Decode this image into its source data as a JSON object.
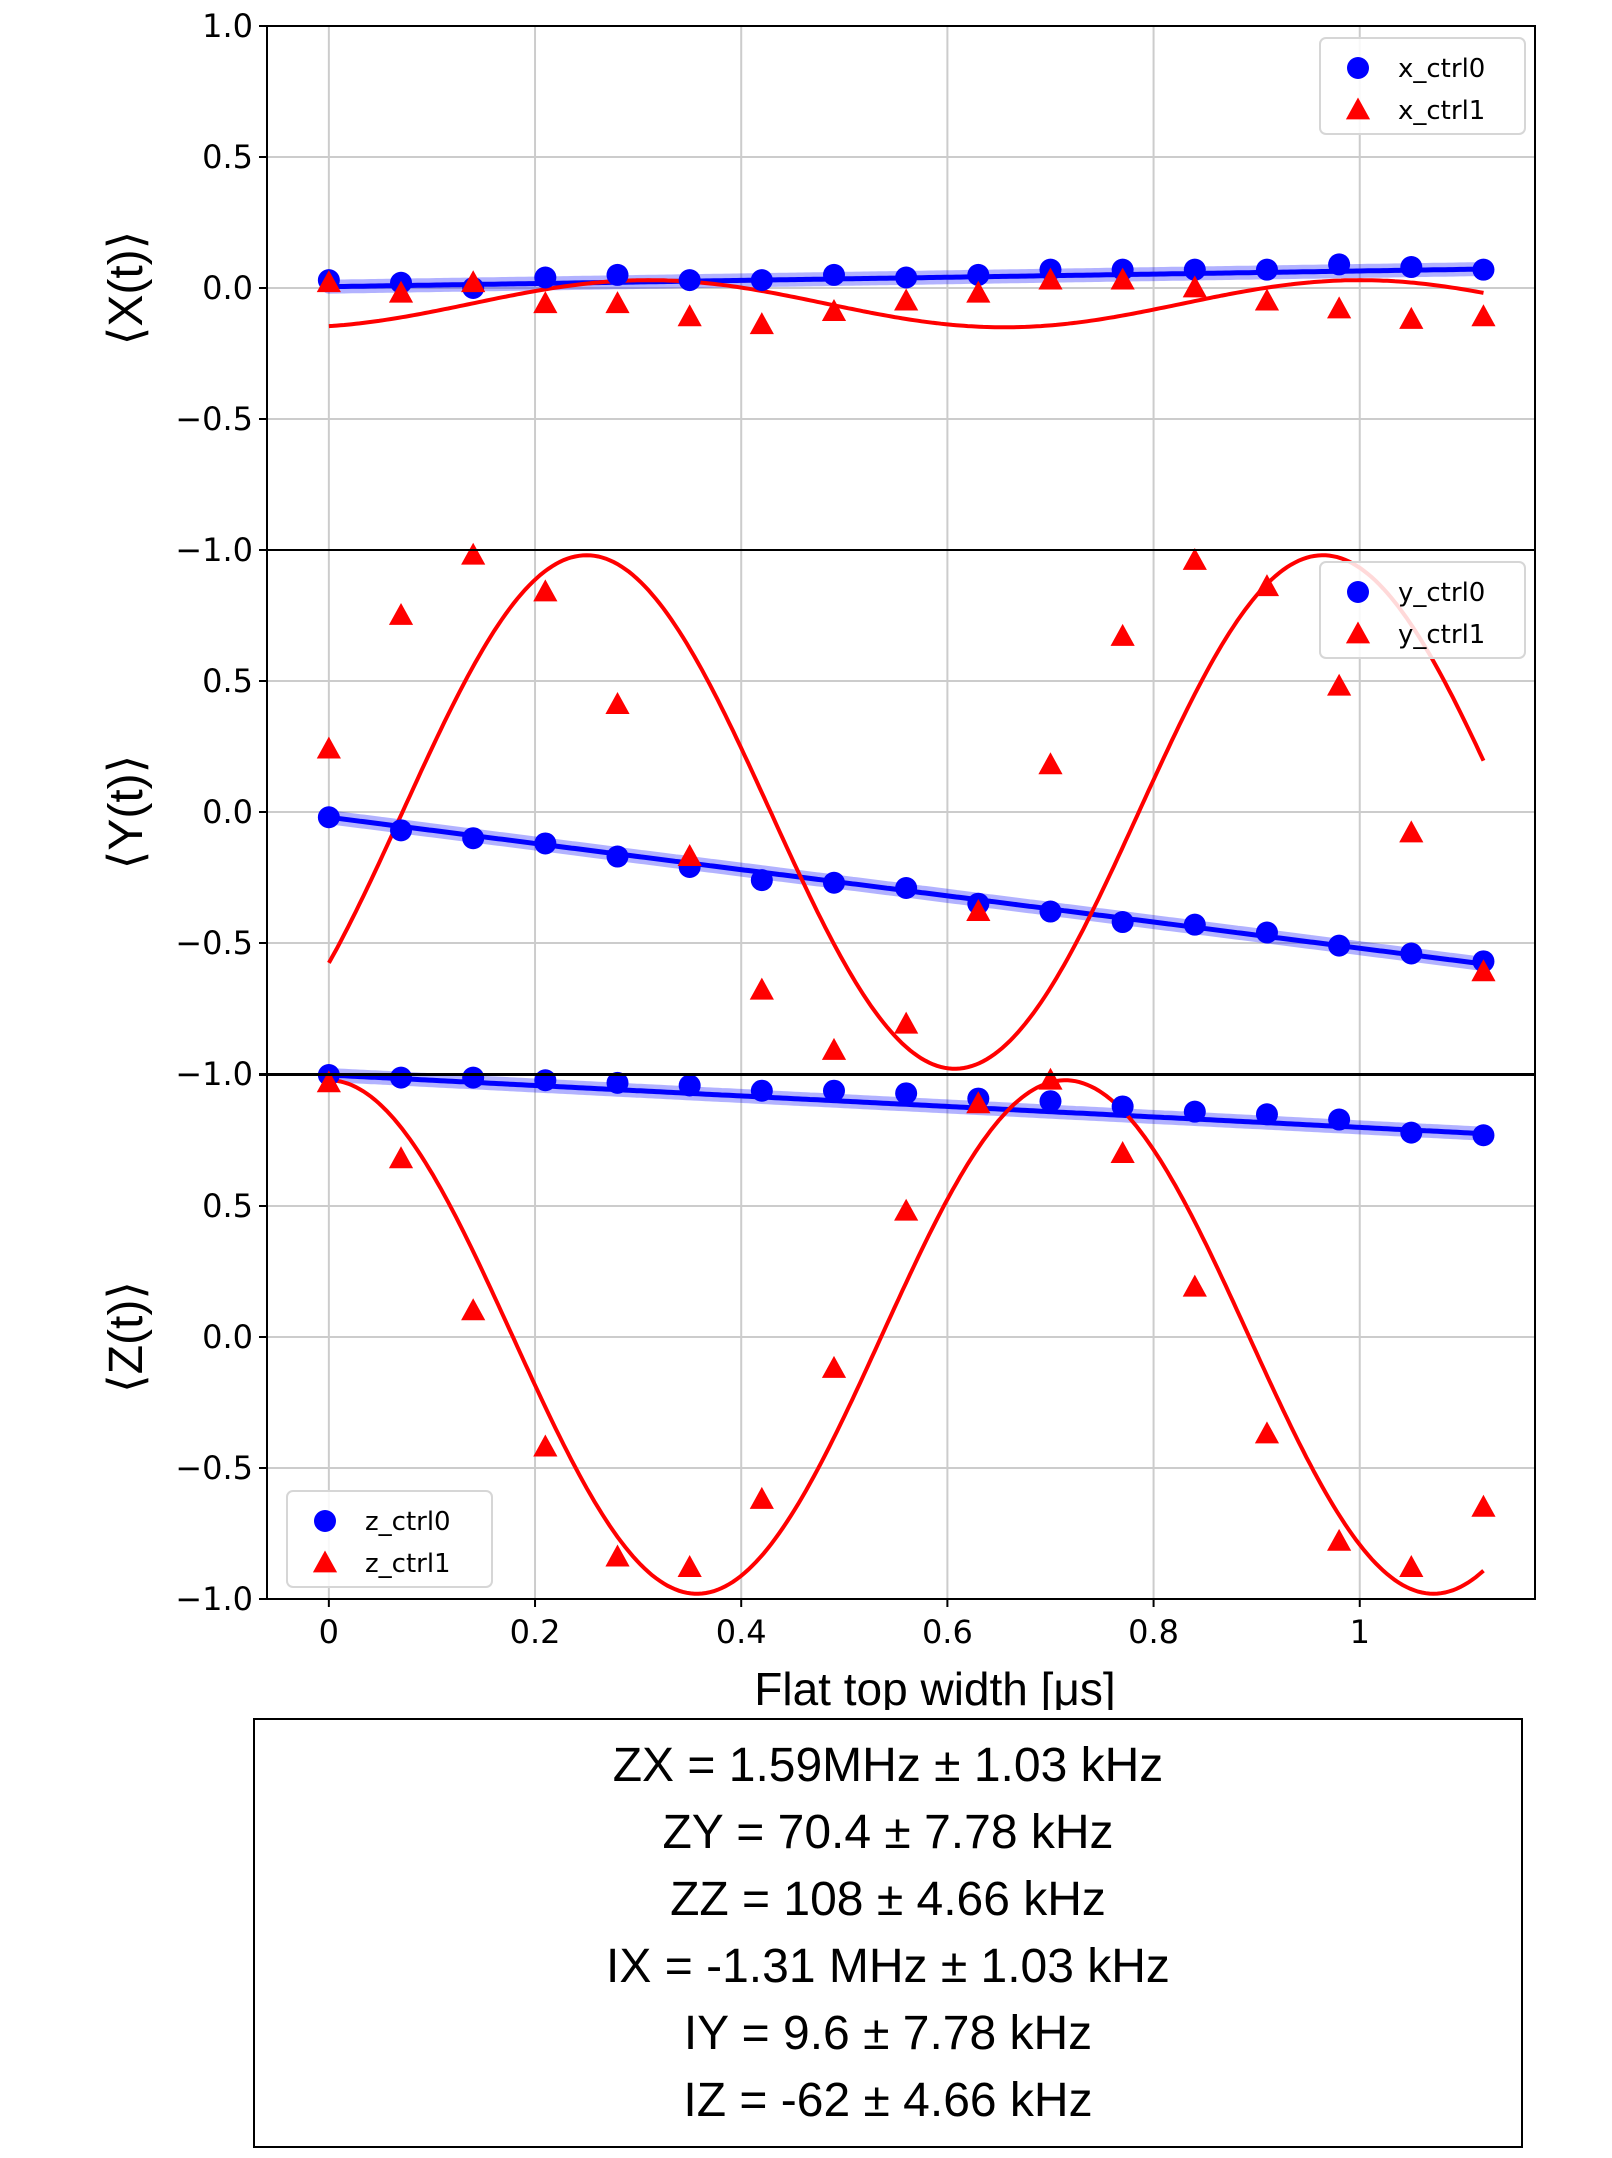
{
  "chart_data": {
    "type": "scatter",
    "xlabel": "Flat top width [μs]",
    "xlim": [
      -0.06,
      1.17
    ],
    "xticks": [
      0,
      0.2,
      0.4,
      0.6,
      0.8,
      1
    ],
    "xtick_labels": [
      "0",
      "0.2",
      "0.4",
      "0.6",
      "0.8",
      "1"
    ],
    "x": [
      0,
      0.07,
      0.14,
      0.21,
      0.28,
      0.35,
      0.42,
      0.49,
      0.56,
      0.63,
      0.7,
      0.77,
      0.84,
      0.91,
      0.98,
      1.05,
      1.12
    ],
    "panels": [
      {
        "ylabel": "⟨X(t)⟩",
        "ylim": [
          -1.0,
          1.0
        ],
        "yticks": [
          1.0,
          0.5,
          0.0,
          -0.5,
          -1.0
        ],
        "ytick_labels": [
          "1.0",
          "0.5",
          "0.0",
          "−0.5",
          "−1.0"
        ],
        "legend_position": "top-right",
        "series": [
          {
            "name": "x_ctrl0",
            "marker": "circle",
            "color": "#0000ff",
            "values": [
              0.03,
              0.02,
              0.0,
              0.04,
              0.05,
              0.03,
              0.03,
              0.05,
              0.04,
              0.05,
              0.07,
              0.07,
              0.07,
              0.07,
              0.09,
              0.08,
              0.07
            ],
            "fit": {
              "kind": "linear",
              "a": 0.005,
              "b": 0.06
            }
          },
          {
            "name": "x_ctrl1",
            "marker": "triangle",
            "color": "#ff0000",
            "values": [
              0.02,
              -0.02,
              0.02,
              -0.06,
              -0.06,
              -0.11,
              -0.14,
              -0.09,
              -0.05,
              -0.02,
              0.03,
              0.03,
              0.0,
              -0.05,
              -0.08,
              -0.12,
              -0.11
            ],
            "fit": {
              "kind": "sine",
              "c": -0.06,
              "a": 0.09,
              "freq": 1.45,
              "phase": 1.0
            }
          }
        ]
      },
      {
        "ylabel": "⟨Y(t)⟩",
        "ylim": [
          -1.0,
          1.0
        ],
        "yticks": [
          1.0,
          0.5,
          0.0,
          -0.5,
          -1.0
        ],
        "ytick_labels": [
          "",
          "0.5",
          "0.0",
          "−0.5",
          "−1.0"
        ],
        "legend_position": "top-right",
        "series": [
          {
            "name": "y_ctrl0",
            "marker": "circle",
            "color": "#0000ff",
            "values": [
              -0.02,
              -0.07,
              -0.1,
              -0.12,
              -0.17,
              -0.21,
              -0.26,
              -0.27,
              -0.29,
              -0.35,
              -0.38,
              -0.42,
              -0.43,
              -0.46,
              -0.51,
              -0.54,
              -0.57
            ],
            "fit": {
              "kind": "linear",
              "a": -0.02,
              "b": -0.5
            }
          },
          {
            "name": "y_ctrl1",
            "marker": "triangle",
            "color": "#ff0000",
            "values": [
              0.24,
              0.75,
              0.98,
              0.84,
              0.41,
              -0.17,
              -0.68,
              -0.91,
              -0.81,
              -0.38,
              0.18,
              0.67,
              0.96,
              0.86,
              0.48,
              -0.08,
              -0.61
            ],
            "fit": {
              "kind": "sine",
              "c": 0.0,
              "a": 0.98,
              "freq": 1.4,
              "phase": 0.25
            }
          }
        ]
      },
      {
        "ylabel": "⟨Z(t)⟩",
        "ylim": [
          -1.0,
          1.0
        ],
        "yticks": [
          1.0,
          0.5,
          0.0,
          -0.5,
          -1.0
        ],
        "ytick_labels": [
          "",
          "0.5",
          "0.0",
          "−0.5",
          "−1.0"
        ],
        "legend_position": "bottom-left",
        "series": [
          {
            "name": "z_ctrl0",
            "marker": "circle",
            "color": "#0000ff",
            "values": [
              1.0,
              0.99,
              0.99,
              0.98,
              0.97,
              0.96,
              0.94,
              0.94,
              0.93,
              0.91,
              0.9,
              0.88,
              0.86,
              0.85,
              0.83,
              0.78,
              0.77
            ],
            "fit": {
              "kind": "linear",
              "a": 1.0,
              "b": -0.2
            }
          },
          {
            "name": "z_ctrl1",
            "marker": "triangle",
            "color": "#ff0000",
            "values": [
              0.97,
              0.68,
              0.1,
              -0.42,
              -0.84,
              -0.88,
              -0.62,
              -0.12,
              0.48,
              0.89,
              0.98,
              0.7,
              0.19,
              -0.37,
              -0.78,
              -0.88,
              -0.65
            ],
            "fit": {
              "kind": "sine",
              "c": 0.0,
              "a": 0.98,
              "freq": 1.4,
              "phase": 0.0
            }
          }
        ]
      }
    ]
  },
  "results": [
    "ZX = 1.59MHz ± 1.03 kHz",
    "ZY = 70.4 ± 7.78 kHz",
    "ZZ = 108 ± 4.66 kHz",
    "IX = -1.31 MHz ± 1.03 kHz",
    "IY = 9.6 ± 7.78 kHz",
    "IZ = -62 ± 4.66 kHz"
  ]
}
